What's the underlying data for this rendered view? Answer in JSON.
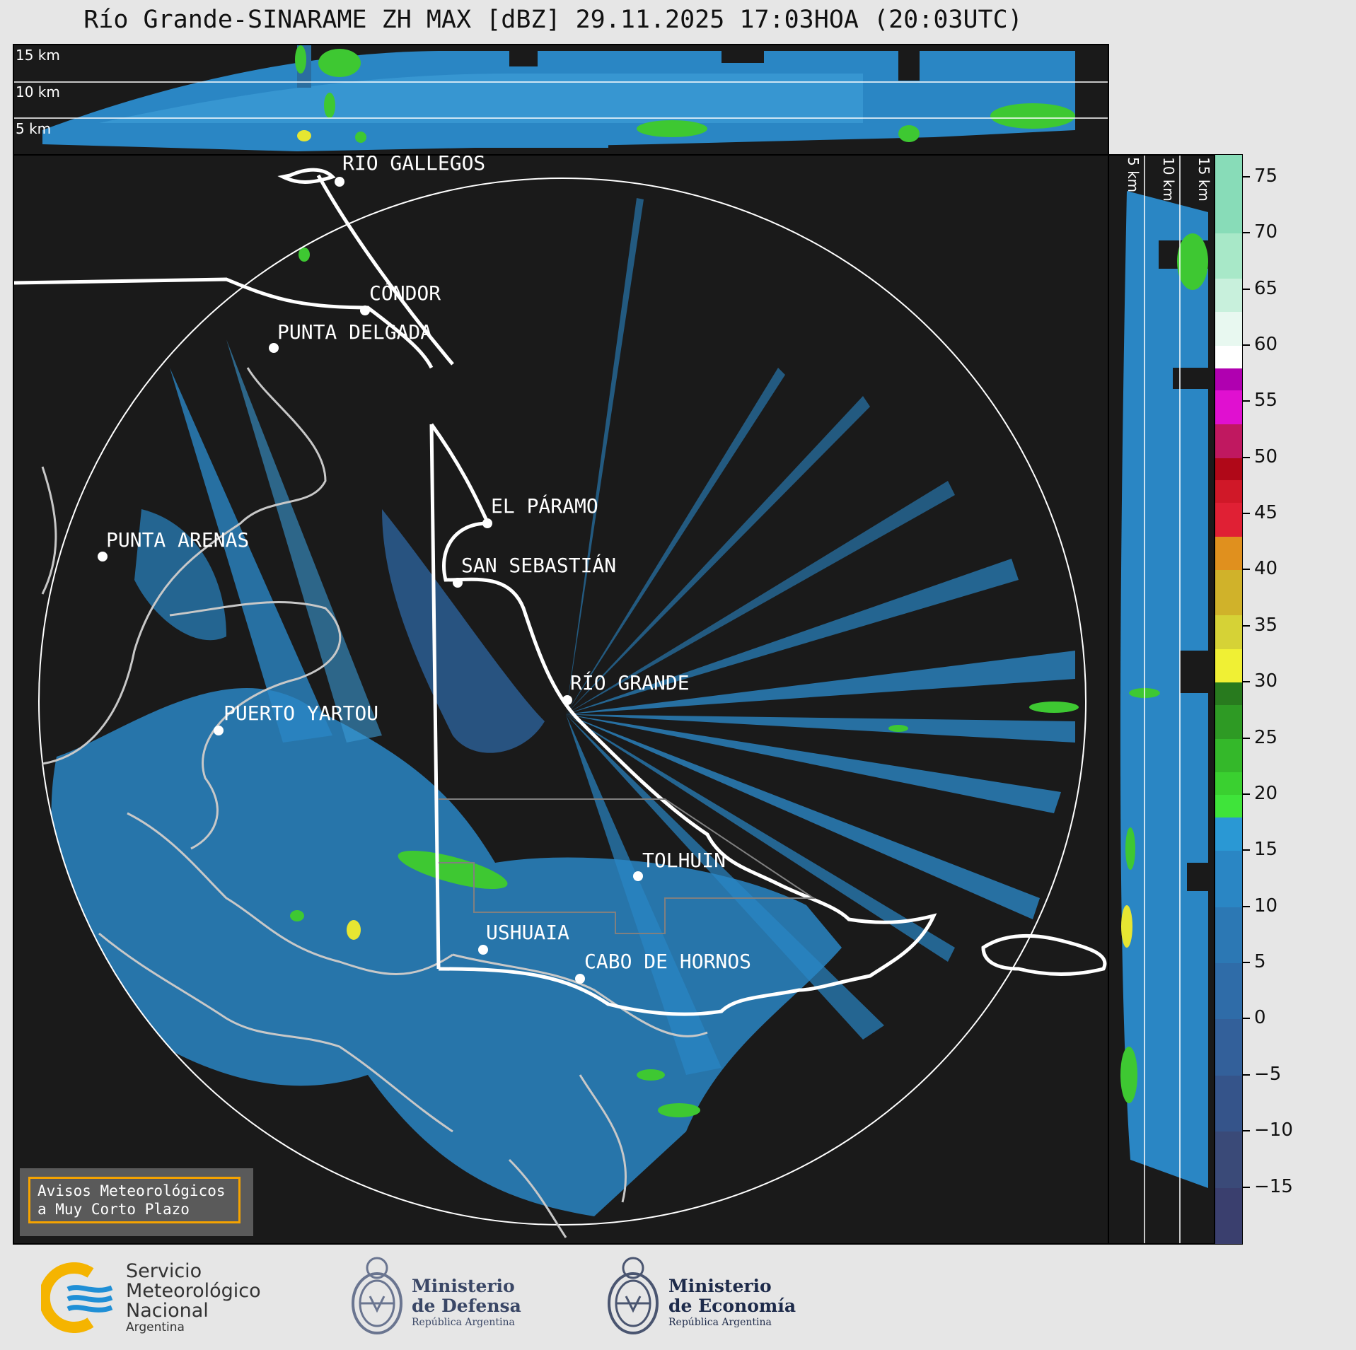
{
  "title": "Río Grande-SINARAME ZH MAX [dBZ] 29.11.2025 17:03HOA (20:03UTC)",
  "top_panel": {
    "km_labels": [
      "15 km",
      "10 km",
      "5 km"
    ]
  },
  "side_panel": {
    "km_labels": [
      "5 km",
      "10 km",
      "15 km"
    ]
  },
  "cities": [
    {
      "name": "RÍO GALLEGOS"
    },
    {
      "name": "CÓNDOR"
    },
    {
      "name": "PUNTA DELGADA"
    },
    {
      "name": "EL PÁRAMO"
    },
    {
      "name": "PUNTA ARENAS"
    },
    {
      "name": "SAN SEBASTIÁN"
    },
    {
      "name": "RÍO GRANDE"
    },
    {
      "name": "PUERTO YARTOU"
    },
    {
      "name": "TOLHUIN"
    },
    {
      "name": "USHUAIA"
    },
    {
      "name": "CABO DE HORNOS"
    }
  ],
  "warning": {
    "line1": "Avisos Meteorológicos",
    "line2": "a Muy Corto Plazo"
  },
  "colorbar": {
    "unit": "dBZ",
    "ticks": [
      "75",
      "70",
      "65",
      "60",
      "55",
      "50",
      "45",
      "40",
      "35",
      "30",
      "25",
      "20",
      "15",
      "10",
      "5",
      "0",
      "−5",
      "−10",
      "−15"
    ],
    "range": [
      -20,
      77
    ]
  },
  "logos": {
    "smn": {
      "line1": "Servicio",
      "line2": "Meteorológico",
      "line3": "Nacional",
      "line4": "Argentina"
    },
    "defensa": {
      "line1": "Ministerio",
      "line2": "de Defensa",
      "line3": "República Argentina"
    },
    "economia": {
      "line1": "Ministerio",
      "line2": "de Economía",
      "line3": "República Argentina"
    }
  },
  "colors": {
    "background": "#1a1a1a",
    "echo_blue": "#2a86c4",
    "echo_light": "#3b9ad4",
    "echo_green": "#3ec832",
    "echo_yellow": "#e6e632",
    "border_white": "#ffffff",
    "coast_gray": "#c8c8c8",
    "warning_orange": "#f5a300",
    "smn_blue": "#1f8fd6",
    "smn_yellow": "#f5b400"
  }
}
